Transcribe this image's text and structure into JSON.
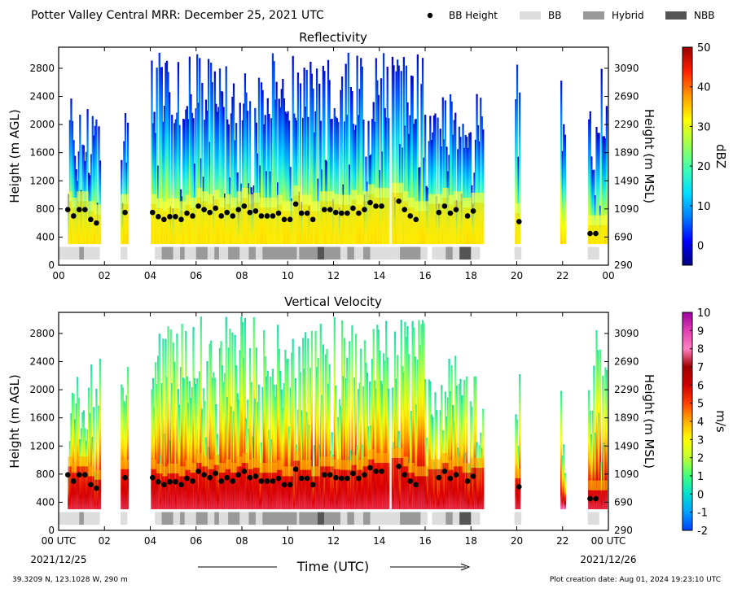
{
  "header": {
    "title": "Potter Valley Central MRR:  December 25, 2021 UTC",
    "legend": [
      {
        "label": "BB Height",
        "kind": "marker",
        "color": "#000000"
      },
      {
        "label": "BB",
        "kind": "box",
        "color": "#dddddd"
      },
      {
        "label": "Hybrid",
        "kind": "box",
        "color": "#999999"
      },
      {
        "label": "NBB",
        "kind": "box",
        "color": "#555555"
      }
    ]
  },
  "footer": {
    "location": "39.3209 N, 123.1028 W, 290 m",
    "creation": "Plot creation date: Aug 01, 2024 19:23:10 UTC",
    "xlabel": "Time (UTC)",
    "start_date": "2021/12/25",
    "end_date": "2021/12/26"
  },
  "chart_data": [
    {
      "type": "heatmap",
      "title": "Reflectivity",
      "ylabel_left": "Height (m AGL)",
      "ylabel_right": "Height (m MSL)",
      "x_ticks": [
        "00",
        "02",
        "04",
        "06",
        "08",
        "10",
        "12",
        "14",
        "16",
        "18",
        "20",
        "22",
        "00"
      ],
      "xlim": [
        0,
        24
      ],
      "y_ticks_left": [
        0,
        400,
        800,
        1200,
        1600,
        2000,
        2400,
        2800
      ],
      "ylim": [
        0,
        3100
      ],
      "y_ticks_right": [
        "290",
        "690",
        "1090",
        "1490",
        "1890",
        "2290",
        "2690",
        "3090"
      ],
      "colorbar": {
        "label": "dBZ",
        "ticks": [
          "0",
          "10",
          "20",
          "30",
          "40",
          "50"
        ],
        "range": [
          -5,
          50
        ],
        "colors": [
          "#00007f",
          "#0000ff",
          "#0080ff",
          "#00e0ff",
          "#40ffb0",
          "#a0ff50",
          "#ffff00",
          "#ff9900",
          "#ff2000",
          "#9a0000"
        ]
      },
      "valid_intervals": [
        [
          0.4,
          1.8
        ],
        [
          2.7,
          3.0
        ],
        [
          4.0,
          8.4
        ],
        [
          8.4,
          14.4
        ],
        [
          14.5,
          18.5
        ],
        [
          19.9,
          20.1
        ],
        [
          21.9,
          22.1
        ],
        [
          23.1,
          23.9
        ]
      ],
      "bb_heights": [
        [
          0.4,
          790
        ],
        [
          0.65,
          700
        ],
        [
          0.9,
          790
        ],
        [
          1.15,
          790
        ],
        [
          1.4,
          650
        ],
        [
          1.65,
          600
        ],
        [
          2.9,
          750
        ],
        [
          4.1,
          750
        ],
        [
          4.35,
          690
        ],
        [
          4.6,
          650
        ],
        [
          4.85,
          690
        ],
        [
          5.1,
          690
        ],
        [
          5.35,
          650
        ],
        [
          5.6,
          740
        ],
        [
          5.85,
          700
        ],
        [
          6.1,
          840
        ],
        [
          6.35,
          790
        ],
        [
          6.6,
          750
        ],
        [
          6.85,
          810
        ],
        [
          7.1,
          700
        ],
        [
          7.35,
          750
        ],
        [
          7.6,
          700
        ],
        [
          7.85,
          790
        ],
        [
          8.1,
          840
        ],
        [
          8.35,
          750
        ],
        [
          8.6,
          770
        ],
        [
          8.85,
          700
        ],
        [
          9.1,
          700
        ],
        [
          9.35,
          700
        ],
        [
          9.6,
          740
        ],
        [
          9.85,
          650
        ],
        [
          10.1,
          650
        ],
        [
          10.35,
          870
        ],
        [
          10.6,
          740
        ],
        [
          10.85,
          740
        ],
        [
          11.1,
          650
        ],
        [
          11.6,
          790
        ],
        [
          11.85,
          790
        ],
        [
          12.1,
          750
        ],
        [
          12.35,
          740
        ],
        [
          12.6,
          740
        ],
        [
          12.85,
          810
        ],
        [
          13.1,
          740
        ],
        [
          13.35,
          790
        ],
        [
          13.6,
          890
        ],
        [
          13.85,
          840
        ],
        [
          14.1,
          840
        ],
        [
          14.85,
          910
        ],
        [
          15.1,
          790
        ],
        [
          15.35,
          700
        ],
        [
          15.6,
          650
        ],
        [
          16.6,
          750
        ],
        [
          16.85,
          840
        ],
        [
          17.1,
          740
        ],
        [
          17.35,
          790
        ],
        [
          17.85,
          700
        ],
        [
          18.1,
          770
        ],
        [
          20.1,
          620
        ],
        [
          23.2,
          450
        ],
        [
          23.45,
          450
        ]
      ],
      "bb_types": [
        {
          "start": 0.0,
          "end": 1.8,
          "type": "BB"
        },
        {
          "start": 0.9,
          "end": 1.1,
          "type": "Hybrid"
        },
        {
          "start": 2.7,
          "end": 3.0,
          "type": "BB"
        },
        {
          "start": 4.2,
          "end": 8.7,
          "type": "BB"
        },
        {
          "start": 4.5,
          "end": 5.0,
          "type": "Hybrid"
        },
        {
          "start": 5.3,
          "end": 5.5,
          "type": "Hybrid"
        },
        {
          "start": 6.0,
          "end": 6.5,
          "type": "Hybrid"
        },
        {
          "start": 6.8,
          "end": 7.0,
          "type": "Hybrid"
        },
        {
          "start": 7.4,
          "end": 7.9,
          "type": "Hybrid"
        },
        {
          "start": 8.3,
          "end": 8.6,
          "type": "Hybrid"
        },
        {
          "start": 8.7,
          "end": 14.6,
          "type": "BB"
        },
        {
          "start": 8.9,
          "end": 10.4,
          "type": "Hybrid"
        },
        {
          "start": 10.5,
          "end": 11.3,
          "type": "Hybrid"
        },
        {
          "start": 11.3,
          "end": 11.6,
          "type": "NBB"
        },
        {
          "start": 11.6,
          "end": 12.3,
          "type": "Hybrid"
        },
        {
          "start": 12.6,
          "end": 12.9,
          "type": "Hybrid"
        },
        {
          "start": 13.3,
          "end": 13.6,
          "type": "Hybrid"
        },
        {
          "start": 14.6,
          "end": 16.1,
          "type": "BB"
        },
        {
          "start": 14.9,
          "end": 15.8,
          "type": "Hybrid"
        },
        {
          "start": 16.3,
          "end": 18.4,
          "type": "BB"
        },
        {
          "start": 16.9,
          "end": 17.2,
          "type": "Hybrid"
        },
        {
          "start": 17.5,
          "end": 18.0,
          "type": "NBB"
        },
        {
          "start": 19.9,
          "end": 20.2,
          "type": "BB"
        },
        {
          "start": 23.1,
          "end": 23.6,
          "type": "BB"
        }
      ]
    },
    {
      "type": "heatmap",
      "title": "Vertical Velocity",
      "ylabel_left": "Height (m AGL)",
      "ylabel_right": "Height (m MSL)",
      "x_ticks": [
        "00 UTC",
        "02",
        "04",
        "06",
        "08",
        "10",
        "12",
        "14",
        "16",
        "18",
        "20",
        "22",
        "00 UTC"
      ],
      "xlim": [
        0,
        24
      ],
      "y_ticks_left": [
        0,
        400,
        800,
        1200,
        1600,
        2000,
        2400,
        2800
      ],
      "ylim": [
        0,
        3100
      ],
      "y_ticks_right": [
        "290",
        "690",
        "1090",
        "1490",
        "1890",
        "2290",
        "2690",
        "3090"
      ],
      "colorbar": {
        "label": "m/s",
        "ticks": [
          "-2",
          "-1",
          "0",
          "1",
          "2",
          "3",
          "4",
          "5",
          "6",
          "7",
          "8",
          "9",
          "10"
        ],
        "range": [
          -2,
          10
        ],
        "colors": [
          "#0040ff",
          "#00a0ff",
          "#00e0d0",
          "#40ff80",
          "#c0ff30",
          "#ffff00",
          "#ffb000",
          "#ff4000",
          "#d00000",
          "#a00000",
          "#ff80c0",
          "#e040b0",
          "#a000a0"
        ]
      },
      "bb_heights_same_as_panel": 0,
      "bb_types_same_as_panel": 0
    }
  ]
}
